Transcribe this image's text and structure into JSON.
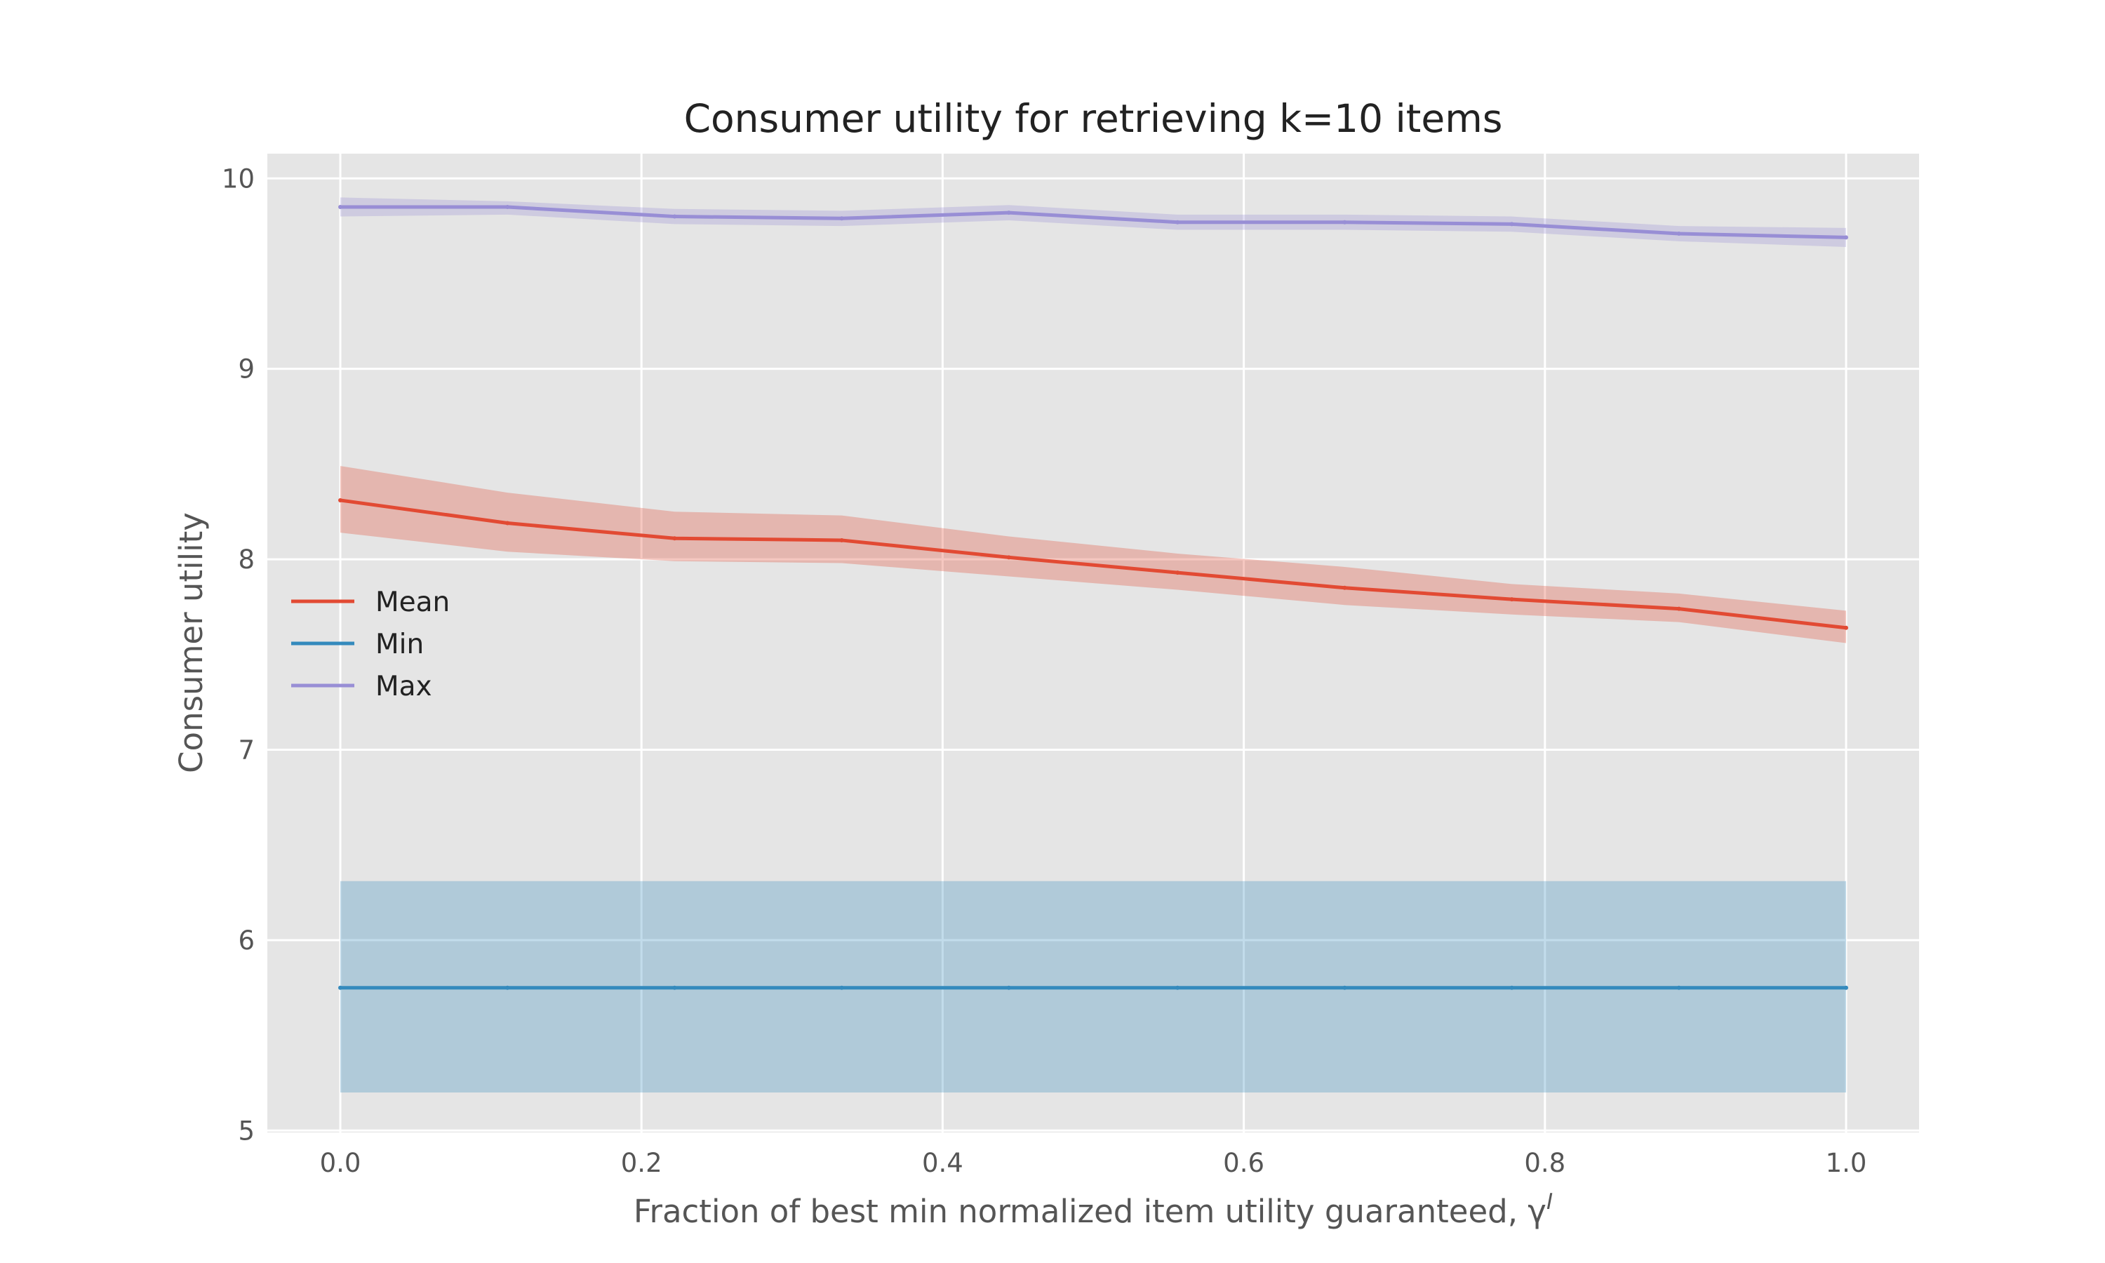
{
  "chart_data": {
    "type": "line",
    "title": "Consumer utility for retrieving k=10 items",
    "xlabel": "Fraction of best min normalized item utility guaranteed, γ",
    "xlabel_superscript": "I",
    "ylabel": "Consumer utility",
    "xlim": [
      -0.05,
      1.05
    ],
    "ylim": [
      4.99,
      10.13
    ],
    "xticks": [
      0.0,
      0.2,
      0.4,
      0.6,
      0.8,
      1.0
    ],
    "xtick_labels": [
      "0.0",
      "0.2",
      "0.4",
      "0.6",
      "0.8",
      "1.0"
    ],
    "yticks": [
      5,
      6,
      7,
      8,
      9,
      10
    ],
    "ytick_labels": [
      "5",
      "6",
      "7",
      "8",
      "9",
      "10"
    ],
    "grid": true,
    "legend_position": "center-left",
    "x": [
      0.0,
      0.111,
      0.222,
      0.333,
      0.444,
      0.556,
      0.667,
      0.778,
      0.889,
      1.0
    ],
    "series": [
      {
        "name": "Mean",
        "color": "#E24A33",
        "values": [
          8.31,
          8.19,
          8.11,
          8.1,
          8.01,
          7.93,
          7.85,
          7.79,
          7.74,
          7.64
        ],
        "upper": [
          8.49,
          8.35,
          8.25,
          8.23,
          8.12,
          8.03,
          7.96,
          7.87,
          7.82,
          7.73
        ],
        "lower": [
          8.14,
          8.04,
          7.99,
          7.98,
          7.91,
          7.84,
          7.76,
          7.71,
          7.67,
          7.56
        ]
      },
      {
        "name": "Min",
        "color": "#348ABD",
        "values": [
          5.75,
          5.75,
          5.75,
          5.75,
          5.75,
          5.75,
          5.75,
          5.75,
          5.75,
          5.75
        ],
        "upper": [
          6.31,
          6.31,
          6.31,
          6.31,
          6.31,
          6.31,
          6.31,
          6.31,
          6.31,
          6.31
        ],
        "lower": [
          5.2,
          5.2,
          5.2,
          5.2,
          5.2,
          5.2,
          5.2,
          5.2,
          5.2,
          5.2
        ]
      },
      {
        "name": "Max",
        "color": "#988ED5",
        "values": [
          9.85,
          9.85,
          9.8,
          9.79,
          9.82,
          9.77,
          9.77,
          9.76,
          9.71,
          9.69
        ],
        "upper": [
          9.9,
          9.88,
          9.84,
          9.83,
          9.86,
          9.81,
          9.81,
          9.8,
          9.75,
          9.74
        ],
        "lower": [
          9.8,
          9.81,
          9.76,
          9.75,
          9.78,
          9.73,
          9.73,
          9.72,
          9.67,
          9.64
        ]
      }
    ]
  }
}
